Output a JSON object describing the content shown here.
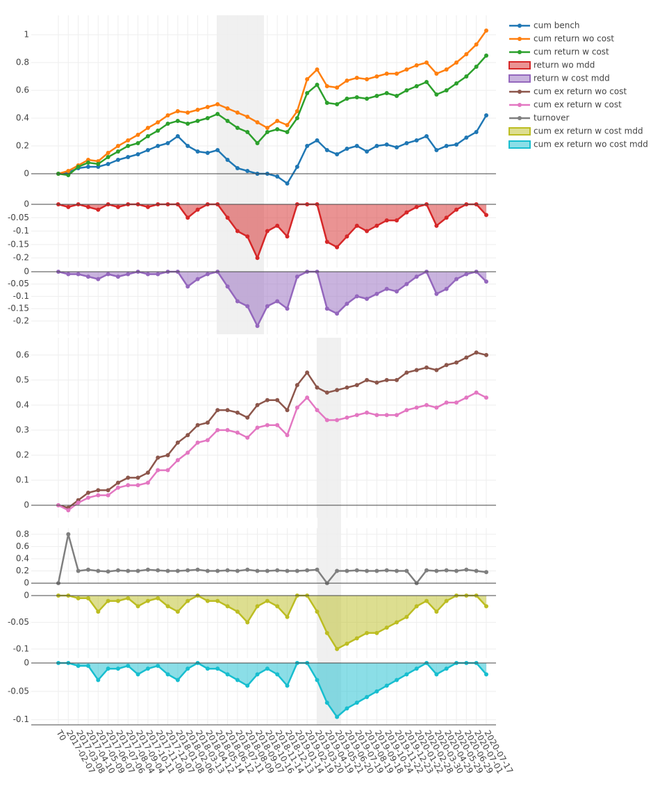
{
  "chart_data": {
    "type": "line",
    "grid": true,
    "categories": [
      "T0",
      "2017-02-07",
      "2017-03-08",
      "2017-04-10",
      "2017-05-09",
      "2017-06-07",
      "2017-07-06",
      "2017-08-04",
      "2017-09-04",
      "2017-10-11",
      "2017-11-08",
      "2017-12-07",
      "2018-01-08",
      "2018-02-06",
      "2018-03-13",
      "2018-04-12",
      "2018-05-14",
      "2018-06-12",
      "2018-07-11",
      "2018-08-09",
      "2018-09-07",
      "2018-10-16",
      "2018-11-14",
      "2018-12-13",
      "2019-01-14",
      "2019-02-19",
      "2019-03-20",
      "2019-04-19",
      "2019-05-21",
      "2019-06-20",
      "2019-07-19",
      "2019-08-19",
      "2019-09-18",
      "2019-10-24",
      "2019-11-22",
      "2019-12-23",
      "2020-01-22",
      "2020-02-28",
      "2020-03-30",
      "2020-04-29",
      "2020-05-29",
      "2020-06-29",
      "2020-07-01",
      "2020-07-17"
    ],
    "panels": [
      {
        "ylim": [
          -0.2,
          1.14
        ],
        "yticks": [
          0,
          0.2,
          0.4,
          0.6,
          0.8,
          1
        ],
        "series": [
          {
            "name": "cum bench",
            "color": "#1f77b4",
            "values": [
              0,
              0.01,
              0.04,
              0.05,
              0.05,
              0.07,
              0.1,
              0.12,
              0.14,
              0.17,
              0.2,
              0.22,
              0.27,
              0.2,
              0.16,
              0.15,
              0.17,
              0.1,
              0.04,
              0.02,
              0,
              0,
              -0.02,
              -0.07,
              0.05,
              0.2,
              0.24,
              0.17,
              0.14,
              0.18,
              0.2,
              0.16,
              0.2,
              0.21,
              0.19,
              0.22,
              0.24,
              0.27,
              0.17,
              0.2,
              0.21,
              0.26,
              0.3,
              0.42
            ]
          },
          {
            "name": "cum return wo cost",
            "color": "#ff7f0e",
            "values": [
              0,
              0.02,
              0.06,
              0.1,
              0.09,
              0.15,
              0.2,
              0.24,
              0.28,
              0.33,
              0.37,
              0.42,
              0.45,
              0.44,
              0.46,
              0.48,
              0.5,
              0.47,
              0.44,
              0.41,
              0.37,
              0.33,
              0.38,
              0.35,
              0.45,
              0.68,
              0.75,
              0.63,
              0.62,
              0.67,
              0.69,
              0.68,
              0.7,
              0.72,
              0.72,
              0.75,
              0.78,
              0.8,
              0.72,
              0.75,
              0.8,
              0.86,
              0.93,
              1.03
            ]
          },
          {
            "name": "cum return w cost",
            "color": "#2ca02c",
            "values": [
              0,
              -0.01,
              0.05,
              0.08,
              0.07,
              0.12,
              0.16,
              0.2,
              0.22,
              0.27,
              0.31,
              0.36,
              0.38,
              0.36,
              0.38,
              0.4,
              0.43,
              0.38,
              0.33,
              0.3,
              0.22,
              0.3,
              0.32,
              0.3,
              0.4,
              0.58,
              0.64,
              0.51,
              0.5,
              0.54,
              0.55,
              0.54,
              0.56,
              0.58,
              0.56,
              0.6,
              0.63,
              0.66,
              0.57,
              0.6,
              0.65,
              0.7,
              0.77,
              0.85
            ]
          }
        ]
      },
      {
        "ylim": [
          -0.236,
          0
        ],
        "yticks": [
          -0.2,
          -0.15,
          -0.1,
          -0.05,
          0
        ],
        "series": [
          {
            "name": "return wo mdd",
            "color": "#d62728",
            "fill": true,
            "values": [
              0,
              -0.01,
              0,
              -0.01,
              -0.02,
              0,
              -0.01,
              0,
              0,
              -0.01,
              0,
              0,
              0,
              -0.05,
              -0.02,
              0,
              0,
              -0.05,
              -0.1,
              -0.12,
              -0.2,
              -0.1,
              -0.08,
              -0.12,
              0,
              0,
              0,
              -0.14,
              -0.16,
              -0.12,
              -0.08,
              -0.1,
              -0.08,
              -0.06,
              -0.06,
              -0.03,
              -0.01,
              0,
              -0.08,
              -0.05,
              -0.02,
              0,
              0,
              -0.04
            ]
          }
        ]
      },
      {
        "ylim": [
          -0.254,
          0
        ],
        "yticks": [
          -0.2,
          -0.15,
          -0.1,
          -0.05,
          0
        ],
        "series": [
          {
            "name": "return w cost mdd",
            "color": "#9467bd",
            "fill": true,
            "values": [
              0,
              -0.01,
              -0.01,
              -0.02,
              -0.03,
              -0.01,
              -0.02,
              -0.01,
              0,
              -0.01,
              -0.01,
              0,
              0,
              -0.06,
              -0.03,
              -0.01,
              0,
              -0.06,
              -0.12,
              -0.14,
              -0.22,
              -0.14,
              -0.12,
              -0.15,
              -0.02,
              0,
              0,
              -0.15,
              -0.17,
              -0.13,
              -0.1,
              -0.11,
              -0.09,
              -0.07,
              -0.08,
              -0.05,
              -0.02,
              0,
              -0.09,
              -0.07,
              -0.03,
              -0.01,
              0,
              -0.04
            ]
          }
        ]
      },
      {
        "ylim": [
          -0.05,
          0.669
        ],
        "yticks": [
          0,
          0.1,
          0.2,
          0.3,
          0.4,
          0.5,
          0.6
        ],
        "series": [
          {
            "name": "cum ex return wo cost",
            "color": "#8c564b",
            "values": [
              0,
              -0.01,
              0.02,
              0.05,
              0.06,
              0.06,
              0.09,
              0.11,
              0.11,
              0.13,
              0.19,
              0.2,
              0.25,
              0.28,
              0.32,
              0.33,
              0.38,
              0.38,
              0.37,
              0.35,
              0.4,
              0.42,
              0.42,
              0.38,
              0.48,
              0.53,
              0.47,
              0.45,
              0.46,
              0.47,
              0.48,
              0.5,
              0.49,
              0.5,
              0.5,
              0.53,
              0.54,
              0.55,
              0.54,
              0.56,
              0.57,
              0.59,
              0.61,
              0.6
            ]
          },
          {
            "name": "cum ex return w cost",
            "color": "#e377c2",
            "values": [
              0,
              -0.02,
              0.01,
              0.03,
              0.04,
              0.04,
              0.07,
              0.08,
              0.08,
              0.09,
              0.14,
              0.14,
              0.18,
              0.21,
              0.25,
              0.26,
              0.3,
              0.3,
              0.29,
              0.27,
              0.31,
              0.32,
              0.32,
              0.28,
              0.39,
              0.43,
              0.38,
              0.34,
              0.34,
              0.35,
              0.36,
              0.37,
              0.36,
              0.36,
              0.36,
              0.38,
              0.39,
              0.4,
              0.39,
              0.41,
              0.41,
              0.43,
              0.45,
              0.43
            ]
          }
        ]
      },
      {
        "ylim": [
          -0.01,
          0.9
        ],
        "yticks": [
          0,
          0.2,
          0.4,
          0.6,
          0.8
        ],
        "series": [
          {
            "name": "turnover",
            "color": "#7f7f7f",
            "values": [
              0,
              0.8,
              0.2,
              0.22,
              0.2,
              0.19,
              0.21,
              0.2,
              0.2,
              0.22,
              0.21,
              0.2,
              0.2,
              0.21,
              0.22,
              0.2,
              0.2,
              0.21,
              0.2,
              0.22,
              0.2,
              0.2,
              0.21,
              0.2,
              0.2,
              0.21,
              0.22,
              0,
              0.2,
              0.2,
              0.21,
              0.2,
              0.2,
              0.21,
              0.2,
              0.2,
              0,
              0.21,
              0.2,
              0.21,
              0.2,
              0.22,
              0.2,
              0.18
            ]
          }
        ]
      },
      {
        "ylim": [
          -0.117,
          0
        ],
        "yticks": [
          -0.1,
          -0.05,
          0
        ],
        "series": [
          {
            "name": "cum ex return w cost mdd",
            "color": "#bcbd22",
            "fill": true,
            "values": [
              0,
              0,
              -0.005,
              -0.005,
              -0.03,
              -0.01,
              -0.01,
              -0.005,
              -0.02,
              -0.01,
              -0.005,
              -0.02,
              -0.03,
              -0.01,
              0,
              -0.01,
              -0.01,
              -0.02,
              -0.03,
              -0.05,
              -0.02,
              -0.01,
              -0.02,
              -0.04,
              0,
              0,
              -0.03,
              -0.07,
              -0.1,
              -0.09,
              -0.08,
              -0.07,
              -0.07,
              -0.06,
              -0.05,
              -0.04,
              -0.02,
              -0.01,
              -0.03,
              -0.01,
              0,
              0,
              0,
              -0.02
            ]
          }
        ]
      },
      {
        "ylim": [
          -0.109,
          0
        ],
        "yticks": [
          -0.1,
          -0.05,
          0
        ],
        "series": [
          {
            "name": "cum ex return wo cost mdd",
            "color": "#17becf",
            "fill": true,
            "values": [
              0,
              0,
              -0.005,
              -0.005,
              -0.03,
              -0.01,
              -0.01,
              -0.005,
              -0.02,
              -0.01,
              -0.005,
              -0.02,
              -0.03,
              -0.01,
              0,
              -0.01,
              -0.01,
              -0.02,
              -0.03,
              -0.04,
              -0.02,
              -0.01,
              -0.02,
              -0.04,
              0,
              0,
              -0.03,
              -0.07,
              -0.095,
              -0.08,
              -0.07,
              -0.06,
              -0.05,
              -0.04,
              -0.03,
              -0.02,
              -0.01,
              0,
              -0.02,
              -0.01,
              0,
              0,
              0,
              -0.02
            ]
          }
        ]
      }
    ]
  }
}
